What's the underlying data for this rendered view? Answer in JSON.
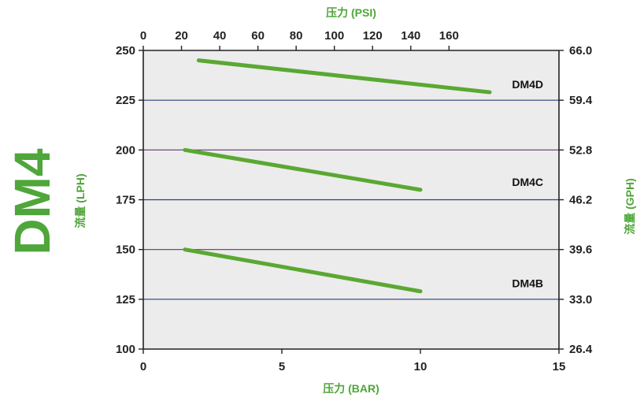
{
  "chart_data": {
    "type": "line",
    "title": "DM4",
    "x_bar": {
      "label": "压力 (BAR)",
      "range": [
        0,
        15
      ],
      "ticks": [
        0,
        5,
        10,
        15
      ]
    },
    "x_psi": {
      "label": "压力 (PSI)",
      "ticks": [
        0,
        20,
        40,
        60,
        80,
        100,
        120,
        140,
        160
      ]
    },
    "y_lph": {
      "label": "流量 (LPH)",
      "range": [
        100,
        250
      ],
      "ticks": [
        100,
        125,
        150,
        175,
        200,
        225,
        250
      ]
    },
    "y_gph": {
      "label": "流量 (GPH)",
      "ticks": [
        "26.4",
        "33.0",
        "39.6",
        "46.2",
        "52.8",
        "59.4",
        "66.0"
      ]
    },
    "grid": true,
    "series": [
      {
        "name": "DM4D",
        "points": [
          [
            2,
            245
          ],
          [
            12.5,
            229
          ]
        ]
      },
      {
        "name": "DM4C",
        "points": [
          [
            1.5,
            200
          ],
          [
            10,
            180
          ]
        ]
      },
      {
        "name": "DM4B",
        "points": [
          [
            1.5,
            150
          ],
          [
            10,
            129
          ]
        ]
      }
    ]
  },
  "colors": {
    "accent_green": "#4fa63a",
    "series_line": "#5aa832",
    "plot_bg": "#ececec",
    "gridline_blue": "#2d3f7c",
    "gridline_purple": "#5b3a6f"
  }
}
